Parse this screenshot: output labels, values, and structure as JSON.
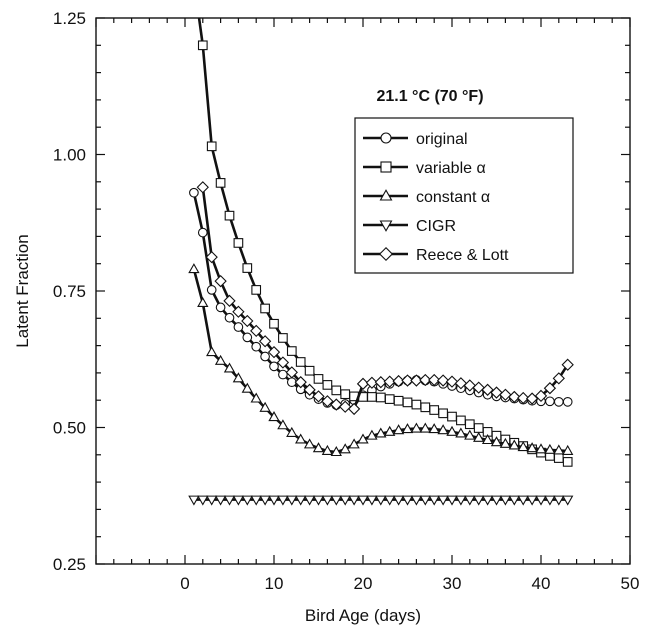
{
  "chart_data": {
    "type": "line",
    "title": "",
    "annotation": "21.1 °C (70 °F)",
    "xlabel": "Bird Age (days)",
    "ylabel": "Latent Fraction",
    "xlim": [
      -10,
      50
    ],
    "ylim": [
      0.25,
      1.25
    ],
    "xticks": [
      0,
      10,
      20,
      30,
      40,
      50
    ],
    "xtick_labels": [
      "0",
      "10",
      "20",
      "30",
      "40",
      "50"
    ],
    "yticks": [
      0.25,
      0.5,
      0.75,
      1.0,
      1.25
    ],
    "ytick_labels": [
      "0.25",
      "0.50",
      "0.75",
      "1.00",
      "1.25"
    ],
    "grid": false,
    "legend_position": "top-right",
    "series": [
      {
        "name": "original",
        "marker": "circle",
        "x": [
          1,
          2,
          3,
          4,
          5,
          6,
          7,
          8,
          9,
          10,
          11,
          12,
          13,
          14,
          15,
          16,
          17,
          18,
          19,
          20,
          21,
          22,
          23,
          24,
          25,
          26,
          27,
          28,
          29,
          30,
          31,
          32,
          33,
          34,
          35,
          36,
          37,
          38,
          39,
          40,
          41,
          42,
          43
        ],
        "y": [
          0.93,
          0.857,
          0.752,
          0.72,
          0.701,
          0.684,
          0.665,
          0.648,
          0.63,
          0.612,
          0.597,
          0.583,
          0.57,
          0.56,
          0.552,
          0.545,
          0.541,
          0.543,
          0.55,
          0.559,
          0.568,
          0.575,
          0.58,
          0.584,
          0.586,
          0.587,
          0.586,
          0.584,
          0.58,
          0.576,
          0.572,
          0.568,
          0.564,
          0.56,
          0.557,
          0.555,
          0.553,
          0.551,
          0.549,
          0.548,
          0.548,
          0.547,
          0.547
        ]
      },
      {
        "name": "variable α",
        "marker": "square",
        "x": [
          2,
          3,
          4,
          5,
          6,
          7,
          8,
          9,
          10,
          11,
          12,
          13,
          14,
          15,
          16,
          17,
          18,
          19,
          20,
          21,
          22,
          23,
          24,
          25,
          26,
          27,
          28,
          29,
          30,
          31,
          32,
          33,
          34,
          35,
          36,
          37,
          38,
          39,
          40,
          41,
          42,
          43
        ],
        "y": [
          1.2,
          1.015,
          0.948,
          0.888,
          0.838,
          0.792,
          0.752,
          0.718,
          0.69,
          0.664,
          0.64,
          0.62,
          0.604,
          0.589,
          0.578,
          0.568,
          0.561,
          0.557,
          0.556,
          0.556,
          0.555,
          0.552,
          0.549,
          0.546,
          0.542,
          0.537,
          0.532,
          0.526,
          0.52,
          0.513,
          0.506,
          0.499,
          0.492,
          0.485,
          0.478,
          0.472,
          0.466,
          0.46,
          0.454,
          0.448,
          0.444,
          0.437
        ]
      },
      {
        "name": "constant α",
        "marker": "triangle-up",
        "x": [
          1,
          2,
          3,
          4,
          5,
          6,
          7,
          8,
          9,
          10,
          11,
          12,
          13,
          14,
          15,
          16,
          17,
          18,
          19,
          20,
          21,
          22,
          23,
          24,
          25,
          26,
          27,
          28,
          29,
          30,
          31,
          32,
          33,
          34,
          35,
          36,
          37,
          38,
          39,
          40,
          41,
          42,
          43
        ],
        "y": [
          0.79,
          0.728,
          0.638,
          0.622,
          0.608,
          0.59,
          0.571,
          0.553,
          0.536,
          0.519,
          0.504,
          0.49,
          0.478,
          0.469,
          0.462,
          0.457,
          0.455,
          0.46,
          0.469,
          0.478,
          0.485,
          0.489,
          0.492,
          0.495,
          0.497,
          0.498,
          0.498,
          0.497,
          0.495,
          0.492,
          0.489,
          0.485,
          0.481,
          0.477,
          0.473,
          0.47,
          0.467,
          0.464,
          0.462,
          0.46,
          0.459,
          0.458,
          0.457
        ]
      },
      {
        "name": "CIGR",
        "marker": "triangle-down",
        "x": [
          1,
          2,
          3,
          4,
          5,
          6,
          7,
          8,
          9,
          10,
          11,
          12,
          13,
          14,
          15,
          16,
          17,
          18,
          19,
          20,
          21,
          22,
          23,
          24,
          25,
          26,
          27,
          28,
          29,
          30,
          31,
          32,
          33,
          34,
          35,
          36,
          37,
          38,
          39,
          40,
          41,
          42,
          43
        ],
        "y": [
          0.368,
          0.368,
          0.368,
          0.368,
          0.368,
          0.368,
          0.368,
          0.368,
          0.368,
          0.368,
          0.368,
          0.368,
          0.368,
          0.368,
          0.368,
          0.368,
          0.368,
          0.368,
          0.368,
          0.368,
          0.368,
          0.368,
          0.368,
          0.368,
          0.368,
          0.368,
          0.368,
          0.368,
          0.368,
          0.368,
          0.368,
          0.368,
          0.368,
          0.368,
          0.368,
          0.368,
          0.368,
          0.368,
          0.368,
          0.368,
          0.368,
          0.368,
          0.368
        ]
      },
      {
        "name": "Reece & Lott",
        "marker": "diamond",
        "x": [
          2,
          3,
          4,
          5,
          6,
          7,
          8,
          9,
          10,
          11,
          12,
          13,
          14,
          15,
          16,
          17,
          18,
          19,
          20,
          21,
          22,
          23,
          24,
          25,
          26,
          27,
          28,
          29,
          30,
          31,
          32,
          33,
          34,
          35,
          36,
          37,
          38,
          39,
          40,
          41,
          42,
          43
        ],
        "y": [
          0.94,
          0.812,
          0.768,
          0.732,
          0.712,
          0.695,
          0.677,
          0.658,
          0.638,
          0.619,
          0.601,
          0.583,
          0.569,
          0.557,
          0.548,
          0.542,
          0.538,
          0.534,
          0.58,
          0.582,
          0.583,
          0.584,
          0.585,
          0.586,
          0.586,
          0.587,
          0.587,
          0.586,
          0.584,
          0.581,
          0.577,
          0.573,
          0.569,
          0.564,
          0.56,
          0.556,
          0.554,
          0.553,
          0.558,
          0.572,
          0.59,
          0.615
        ]
      }
    ]
  }
}
